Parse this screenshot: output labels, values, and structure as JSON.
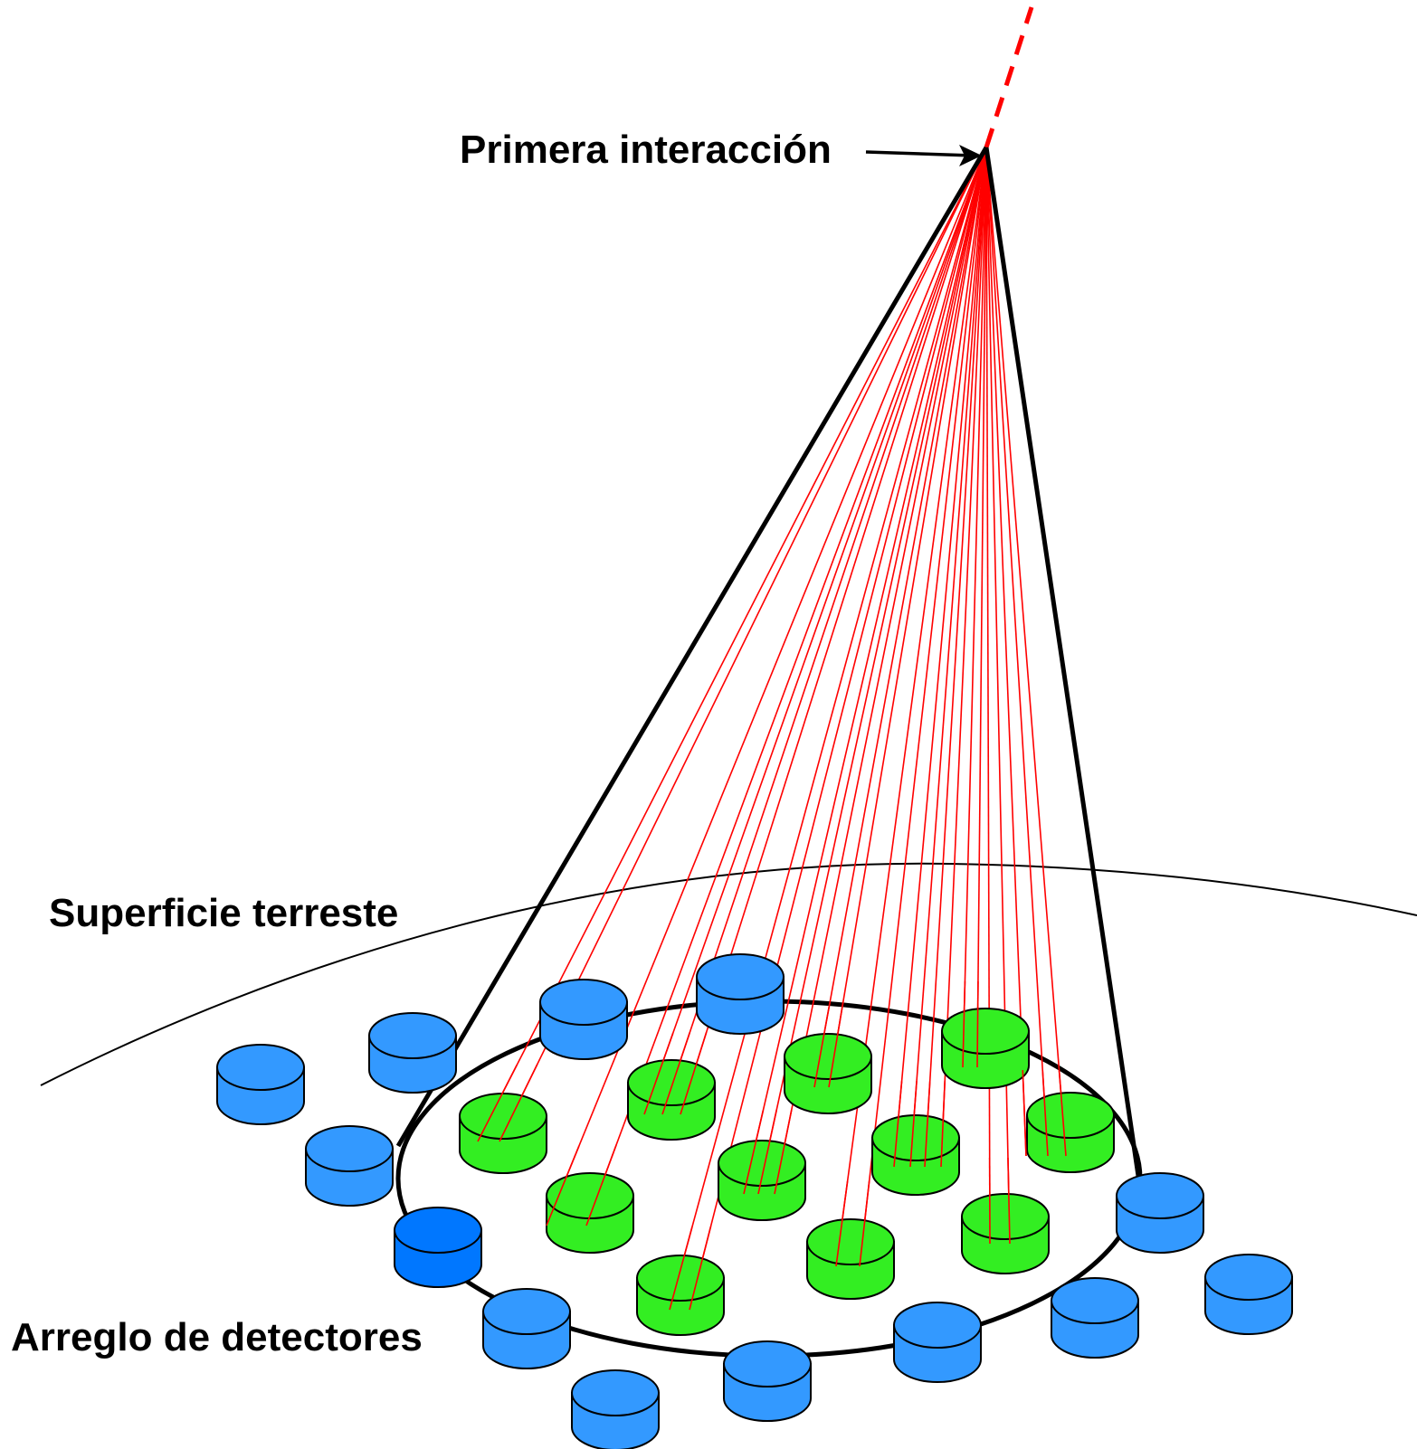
{
  "labels": {
    "first_interaction": "Primera interacción",
    "earth_surface": "Superficie terreste",
    "detector_array": "Arreglo de detectores"
  },
  "colors": {
    "background": "#ffffff",
    "outline": "#000000",
    "shower_particles": "#ff0000",
    "primary_track": "#ff0000",
    "detector_inactive": "#3399ff",
    "detector_triggered": "#33ee22",
    "detector_highlight": "#0077ff"
  },
  "icons": {
    "detector": "cylinder-detector-icon",
    "arrow": "arrow-right-icon"
  }
}
